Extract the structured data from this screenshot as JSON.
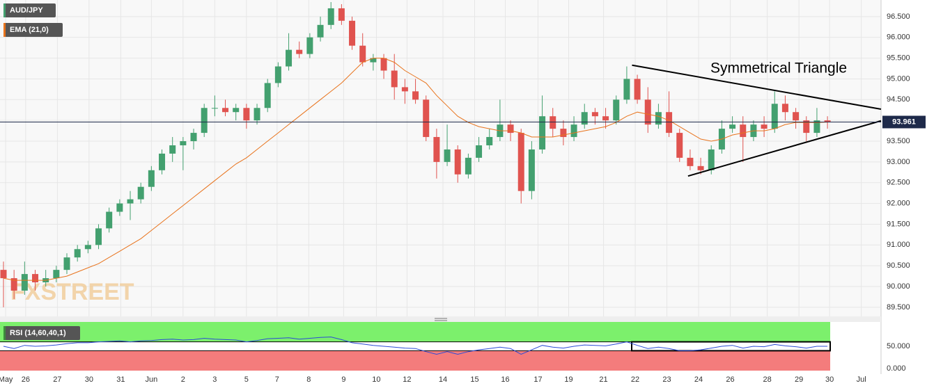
{
  "chart_data": {
    "type": "candlestick",
    "symbol": "AUD/JPY",
    "watermark": "FXSTREET",
    "up_color": "#43a06f",
    "down_color": "#e0534f",
    "grid": true,
    "xlim": [
      -0.33,
      83.07
    ],
    "xticks": [
      {
        "value": 0.2,
        "label": "May"
      },
      {
        "value": 2.1,
        "label": "26"
      },
      {
        "value": 5.1,
        "label": "27"
      },
      {
        "value": 8.1,
        "label": "30"
      },
      {
        "value": 11.1,
        "label": "31"
      },
      {
        "value": 14.0,
        "label": "Jun"
      },
      {
        "value": 17.0,
        "label": "2"
      },
      {
        "value": 20.0,
        "label": "3"
      },
      {
        "value": 23.0,
        "label": "5"
      },
      {
        "value": 25.9,
        "label": "7"
      },
      {
        "value": 28.9,
        "label": "8"
      },
      {
        "value": 32.2,
        "label": "9"
      },
      {
        "value": 35.3,
        "label": "10"
      },
      {
        "value": 38.2,
        "label": "12"
      },
      {
        "value": 41.6,
        "label": "14"
      },
      {
        "value": 44.6,
        "label": "15"
      },
      {
        "value": 47.5,
        "label": "16"
      },
      {
        "value": 50.6,
        "label": "17"
      },
      {
        "value": 53.5,
        "label": "19"
      },
      {
        "value": 56.8,
        "label": "21"
      },
      {
        "value": 59.8,
        "label": "22"
      },
      {
        "value": 62.8,
        "label": "23"
      },
      {
        "value": 65.8,
        "label": "24"
      },
      {
        "value": 68.8,
        "label": "26"
      },
      {
        "value": 72.3,
        "label": "28"
      },
      {
        "value": 75.3,
        "label": "29"
      },
      {
        "value": 78.2,
        "label": "30"
      },
      {
        "value": 81.2,
        "label": "Jul"
      }
    ],
    "ylim": [
      89.28,
      96.9
    ],
    "yticks": [
      {
        "value": 89.5,
        "label": "89.500"
      },
      {
        "value": 90,
        "label": "90.000"
      },
      {
        "value": 90.5,
        "label": "90.500"
      },
      {
        "value": 91,
        "label": "91.000"
      },
      {
        "value": 91.5,
        "label": "91.500"
      },
      {
        "value": 92,
        "label": "92.000"
      },
      {
        "value": 92.5,
        "label": "92.500"
      },
      {
        "value": 93,
        "label": "93.000"
      },
      {
        "value": 93.5,
        "label": "93.500"
      },
      {
        "value": 94,
        "label": "94.000"
      },
      {
        "value": 94.5,
        "label": "94.500"
      },
      {
        "value": 95,
        "label": "95.000"
      },
      {
        "value": 95.5,
        "label": "95.500"
      },
      {
        "value": 96,
        "label": "96.000"
      },
      {
        "value": 96.5,
        "label": "96.500"
      }
    ],
    "ohlc": [
      [
        90.4,
        90.6,
        89.5,
        90.2
      ],
      [
        90.2,
        90.4,
        89.7,
        89.9
      ],
      [
        89.9,
        90.6,
        89.8,
        90.3
      ],
      [
        90.3,
        90.4,
        89.9,
        90.1
      ],
      [
        90.1,
        90.4,
        90.0,
        90.2
      ],
      [
        90.2,
        90.5,
        90.1,
        90.4
      ],
      [
        90.4,
        90.8,
        90.3,
        90.7
      ],
      [
        90.7,
        91.0,
        90.6,
        90.9
      ],
      [
        90.9,
        91.1,
        90.8,
        91.0
      ],
      [
        91.0,
        91.5,
        90.9,
        91.4
      ],
      [
        91.4,
        91.9,
        91.3,
        91.8
      ],
      [
        91.8,
        92.1,
        91.7,
        92.0
      ],
      [
        92.0,
        92.3,
        91.6,
        92.1
      ],
      [
        92.1,
        92.5,
        92.0,
        92.4
      ],
      [
        92.4,
        92.9,
        92.3,
        92.8
      ],
      [
        92.8,
        93.3,
        92.7,
        93.2
      ],
      [
        93.2,
        93.6,
        93.0,
        93.4
      ],
      [
        93.4,
        93.6,
        92.8,
        93.5
      ],
      [
        93.5,
        93.8,
        93.3,
        93.7
      ],
      [
        93.7,
        94.4,
        93.6,
        94.3
      ],
      [
        94.3,
        94.6,
        94.1,
        94.3
      ],
      [
        94.3,
        94.5,
        94.1,
        94.2
      ],
      [
        94.2,
        94.4,
        94.0,
        94.3
      ],
      [
        94.3,
        94.4,
        93.8,
        94.0
      ],
      [
        94.0,
        94.4,
        93.9,
        94.3
      ],
      [
        94.3,
        95.0,
        94.2,
        94.9
      ],
      [
        94.9,
        95.4,
        94.8,
        95.3
      ],
      [
        95.3,
        96.1,
        95.2,
        95.7
      ],
      [
        95.7,
        95.9,
        95.5,
        95.6
      ],
      [
        95.6,
        96.1,
        95.5,
        96.0
      ],
      [
        96.0,
        96.5,
        95.9,
        96.3
      ],
      [
        96.3,
        96.85,
        96.2,
        96.7
      ],
      [
        96.7,
        96.8,
        96.3,
        96.4
      ],
      [
        96.4,
        96.5,
        95.7,
        95.8
      ],
      [
        95.8,
        96.1,
        95.3,
        95.4
      ],
      [
        95.4,
        95.6,
        95.2,
        95.5
      ],
      [
        95.5,
        95.6,
        95.0,
        95.2
      ],
      [
        95.2,
        95.6,
        94.5,
        94.8
      ],
      [
        94.8,
        95.0,
        94.4,
        94.7
      ],
      [
        94.7,
        95.0,
        94.4,
        94.5
      ],
      [
        94.5,
        94.6,
        93.5,
        93.6
      ],
      [
        93.6,
        93.8,
        92.6,
        93.0
      ],
      [
        93.0,
        93.9,
        92.9,
        93.3
      ],
      [
        93.3,
        93.4,
        92.5,
        92.7
      ],
      [
        92.7,
        93.2,
        92.6,
        93.1
      ],
      [
        93.1,
        93.6,
        93.0,
        93.4
      ],
      [
        93.4,
        93.8,
        93.3,
        93.6
      ],
      [
        93.6,
        94.5,
        93.5,
        93.9
      ],
      [
        93.9,
        94.0,
        93.5,
        93.7
      ],
      [
        93.7,
        93.8,
        92.0,
        92.3
      ],
      [
        92.3,
        93.5,
        92.1,
        93.3
      ],
      [
        93.3,
        94.6,
        93.2,
        94.1
      ],
      [
        94.1,
        94.3,
        93.6,
        93.8
      ],
      [
        93.8,
        94.0,
        93.4,
        93.6
      ],
      [
        93.6,
        94.1,
        93.5,
        93.9
      ],
      [
        93.9,
        94.4,
        93.8,
        94.2
      ],
      [
        94.2,
        94.3,
        93.9,
        94.1
      ],
      [
        94.1,
        94.3,
        93.8,
        94.0
      ],
      [
        94.0,
        94.6,
        93.9,
        94.5
      ],
      [
        94.5,
        95.3,
        94.4,
        95.0
      ],
      [
        95.0,
        95.1,
        94.4,
        94.5
      ],
      [
        94.5,
        94.8,
        93.7,
        93.9
      ],
      [
        93.9,
        94.4,
        93.8,
        94.2
      ],
      [
        94.2,
        94.7,
        93.6,
        93.7
      ],
      [
        93.7,
        93.8,
        93.0,
        93.1
      ],
      [
        93.1,
        93.3,
        92.8,
        92.9
      ],
      [
        92.9,
        93.1,
        92.7,
        92.8
      ],
      [
        92.8,
        93.4,
        92.7,
        93.3
      ],
      [
        93.3,
        94.0,
        93.2,
        93.8
      ],
      [
        93.8,
        94.1,
        93.7,
        93.9
      ],
      [
        93.9,
        94.1,
        93.0,
        93.6
      ],
      [
        93.6,
        94.0,
        93.5,
        93.9
      ],
      [
        93.9,
        94.1,
        93.6,
        93.8
      ],
      [
        93.8,
        94.7,
        93.7,
        94.4
      ],
      [
        94.4,
        94.6,
        94.0,
        94.2
      ],
      [
        94.2,
        94.3,
        93.8,
        94.0
      ],
      [
        94.0,
        94.1,
        93.5,
        93.7
      ],
      [
        93.7,
        94.3,
        93.6,
        94.0
      ],
      [
        94.0,
        94.1,
        93.8,
        93.961
      ]
    ],
    "ema": {
      "name": "EMA (21,0)",
      "color": "#e8731c",
      "values": [
        90.2,
        90.15,
        90.15,
        90.15,
        90.15,
        90.2,
        90.25,
        90.35,
        90.45,
        90.55,
        90.7,
        90.85,
        91.0,
        91.15,
        91.35,
        91.55,
        91.75,
        91.95,
        92.15,
        92.35,
        92.55,
        92.75,
        92.95,
        93.1,
        93.3,
        93.5,
        93.7,
        93.9,
        94.1,
        94.3,
        94.5,
        94.7,
        94.9,
        95.15,
        95.4,
        95.5,
        95.5,
        95.4,
        95.2,
        95.05,
        94.9,
        94.6,
        94.35,
        94.1,
        93.95,
        93.85,
        93.8,
        93.75,
        93.75,
        93.7,
        93.6,
        93.6,
        93.6,
        93.65,
        93.7,
        93.75,
        93.8,
        93.85,
        93.95,
        94.1,
        94.2,
        94.15,
        94.1,
        94.0,
        93.85,
        93.7,
        93.55,
        93.5,
        93.55,
        93.65,
        93.7,
        93.75,
        93.75,
        93.8,
        93.9,
        93.95,
        93.95,
        93.95,
        93.96
      ]
    },
    "annotation": "Symmetrical Triangle",
    "trendlines": [
      {
        "x": [
          59.5,
          83.07
        ],
        "y": [
          95.33,
          94.27
        ]
      },
      {
        "x": [
          64.8,
          83.07
        ],
        "y": [
          92.66,
          93.99
        ]
      }
    ],
    "rsi": {
      "name": "RSI (14,60,40,1)",
      "color": "#2b4bd6",
      "ylim": [
        -7.8,
        104.7
      ],
      "yticks": [
        {
          "value": 50,
          "label": "50.000"
        },
        {
          "value": 0,
          "label": "0.000"
        }
      ],
      "bands": [
        40,
        60
      ],
      "values": [
        50,
        45,
        52,
        50,
        51,
        53,
        56,
        58,
        58,
        60,
        61,
        62,
        60,
        62,
        63,
        65,
        66,
        64,
        65,
        68,
        66,
        65,
        64,
        60,
        63,
        67,
        68,
        69,
        66,
        68,
        70,
        71,
        65,
        58,
        55,
        52,
        50,
        48,
        46,
        45,
        38,
        32,
        38,
        32,
        38,
        42,
        45,
        48,
        45,
        32,
        42,
        52,
        48,
        46,
        50,
        53,
        52,
        51,
        55,
        60,
        52,
        45,
        48,
        45,
        40,
        40,
        42,
        46,
        50,
        52,
        46,
        50,
        49,
        54,
        51,
        49,
        46,
        50,
        50
      ]
    }
  }
}
